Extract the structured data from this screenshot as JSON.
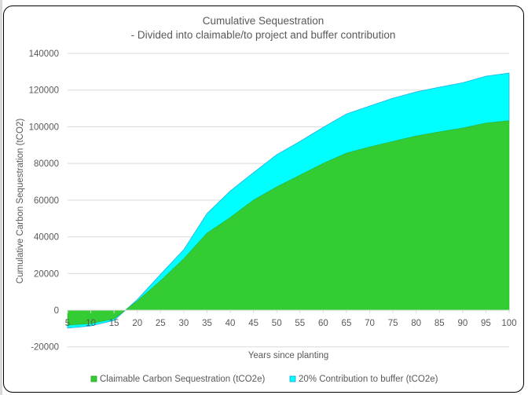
{
  "chart_data": {
    "type": "area",
    "stacked": true,
    "title": "Cumulative Sequestration",
    "subtitle": "- Divided into claimable/to project and buffer contribution",
    "xlabel": "Years since planting",
    "ylabel": "Cumulative Carbon Sequestration (tCO2)",
    "ylim": [
      -20000,
      140000
    ],
    "yticks": [
      -20000,
      0,
      20000,
      40000,
      60000,
      80000,
      100000,
      120000,
      140000
    ],
    "ytick_labels": [
      "-20000",
      "0",
      "20000",
      "40000",
      "60000",
      "80000",
      "100000",
      "120000",
      "140000"
    ],
    "xlim": [
      5,
      100
    ],
    "x": [
      5,
      10,
      15,
      20,
      25,
      30,
      35,
      40,
      45,
      50,
      55,
      60,
      65,
      70,
      75,
      80,
      85,
      90,
      95,
      100
    ],
    "xtick_labels": [
      "5",
      "10",
      "15",
      "20",
      "25",
      "30",
      "35",
      "40",
      "45",
      "50",
      "55",
      "60",
      "65",
      "70",
      "75",
      "80",
      "85",
      "90",
      "95",
      "100"
    ],
    "grid": true,
    "legend_position": "bottom",
    "series": [
      {
        "name": "Claimable Carbon Sequestration (tCO2e)",
        "color": "#33cc33",
        "values": [
          -8100,
          -7300,
          -4700,
          5000,
          16000,
          28000,
          42000,
          50500,
          60000,
          67200,
          73600,
          80000,
          85600,
          89000,
          92000,
          95000,
          97200,
          99300,
          102000,
          103300
        ]
      },
      {
        "name": "20% Contribution to buffer (tCO2e)",
        "color": "#00ffff",
        "values": [
          -1700,
          -1300,
          -900,
          800,
          3500,
          5000,
          10700,
          14500,
          15000,
          17600,
          18400,
          19700,
          21400,
          22300,
          23600,
          24000,
          24400,
          24700,
          25600,
          26000
        ]
      }
    ]
  }
}
